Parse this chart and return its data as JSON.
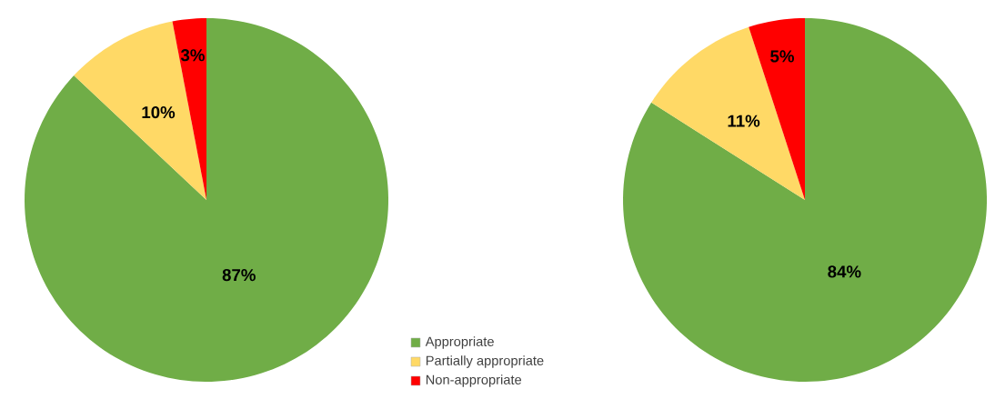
{
  "chart_data": [
    {
      "type": "pie",
      "categories": [
        "Appropriate",
        "Partially appropriate",
        "Non-appropriate"
      ],
      "values": [
        87,
        10,
        3
      ],
      "value_labels": [
        "87%",
        "10%",
        "3%"
      ],
      "colors": [
        "#70ad47",
        "#ffd966",
        "#ff0000"
      ],
      "legend": "bottom right"
    },
    {
      "type": "pie",
      "categories": [
        null,
        null,
        null
      ],
      "values": [
        84,
        11,
        5
      ],
      "value_labels": [
        "84%",
        "11%",
        "5%"
      ],
      "colors": [
        "#70ad47",
        "#ffd966",
        "#ff0000"
      ]
    }
  ]
}
